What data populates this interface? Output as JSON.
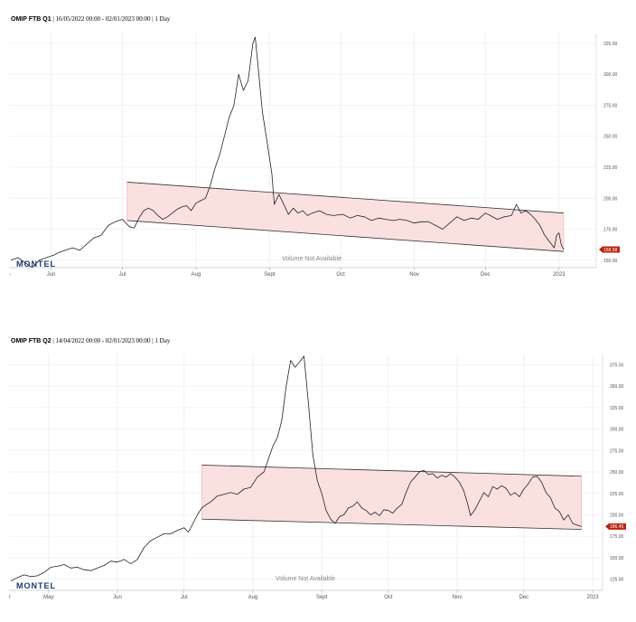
{
  "chart_data": [
    {
      "type": "line",
      "title_name": "OMIP FTB Q1",
      "title_rest": "| 16/05/2022 00:00 - 02/01/2023 00:00 | 1 Day",
      "x_labels": [
        "Jun",
        "Jul",
        "Aug",
        "Sept",
        "Oct",
        "Nov",
        "Dec",
        "2023"
      ],
      "x_label_days": [
        17,
        47,
        78,
        109,
        139,
        170,
        200,
        231
      ],
      "y_ticks": [
        "325.00",
        "300.00",
        "275.00",
        "250.00",
        "225.00",
        "200.00",
        "175.00",
        "150.00"
      ],
      "y_tick_values": [
        325,
        300,
        275,
        250,
        225,
        200,
        175,
        150
      ],
      "ylim": [
        144,
        333
      ],
      "last_value": "158.58",
      "watermark": "Volume Not Available",
      "logo": "MONTEL",
      "series": [
        {
          "values": [
            [
              0,
              150
            ],
            [
              3,
              152
            ],
            [
              6,
              148
            ],
            [
              9,
              144
            ],
            [
              12,
              150
            ],
            [
              15,
              152
            ],
            [
              18,
              154
            ],
            [
              20,
              156
            ],
            [
              23,
              158
            ],
            [
              26,
              160
            ],
            [
              29,
              158
            ],
            [
              32,
              163
            ],
            [
              35,
              168
            ],
            [
              38,
              170
            ],
            [
              41,
              178
            ],
            [
              44,
              181
            ],
            [
              47,
              183
            ],
            [
              50,
              177
            ],
            [
              52,
              176
            ],
            [
              54,
              184
            ],
            [
              56,
              190
            ],
            [
              58,
              192
            ],
            [
              60,
              190
            ],
            [
              62,
              186
            ],
            [
              64,
              183
            ],
            [
              66,
              185
            ],
            [
              68,
              188
            ],
            [
              70,
              191
            ],
            [
              72,
              193
            ],
            [
              74,
              194
            ],
            [
              76,
              190
            ],
            [
              78,
              196
            ],
            [
              80,
              198
            ],
            [
              82,
              200
            ],
            [
              84,
              210
            ],
            [
              86,
              224
            ],
            [
              88,
              235
            ],
            [
              90,
              250
            ],
            [
              92,
              265
            ],
            [
              94,
              275
            ],
            [
              96,
              300
            ],
            [
              98,
              287
            ],
            [
              100,
              295
            ],
            [
              102,
              325
            ],
            [
              103,
              330
            ],
            [
              104,
              310
            ],
            [
              106,
              270
            ],
            [
              108,
              245
            ],
            [
              110,
              220
            ],
            [
              111,
              195
            ],
            [
              113,
              203
            ],
            [
              115,
              195
            ],
            [
              117,
              187
            ],
            [
              119,
              192
            ],
            [
              121,
              188
            ],
            [
              123,
              190
            ],
            [
              125,
              186
            ],
            [
              127,
              188
            ],
            [
              130,
              190
            ],
            [
              133,
              187
            ],
            [
              136,
              186
            ],
            [
              140,
              187
            ],
            [
              143,
              184
            ],
            [
              146,
              186
            ],
            [
              149,
              185
            ],
            [
              152,
              182
            ],
            [
              155,
              184
            ],
            [
              158,
              183
            ],
            [
              161,
              182
            ],
            [
              164,
              183
            ],
            [
              167,
              182
            ],
            [
              170,
              180
            ],
            [
              173,
              181
            ],
            [
              176,
              181
            ],
            [
              179,
              178
            ],
            [
              182,
              175
            ],
            [
              185,
              180
            ],
            [
              188,
              185
            ],
            [
              191,
              182
            ],
            [
              194,
              184
            ],
            [
              197,
              183
            ],
            [
              200,
              188
            ],
            [
              202,
              186
            ],
            [
              205,
              183
            ],
            [
              208,
              185
            ],
            [
              211,
              186
            ],
            [
              213,
              195
            ],
            [
              215,
              188
            ],
            [
              217,
              190
            ],
            [
              219,
              187
            ],
            [
              221,
              183
            ],
            [
              223,
              178
            ],
            [
              225,
              170
            ],
            [
              227,
              165
            ],
            [
              229,
              160
            ],
            [
              230,
              170
            ],
            [
              231,
              172
            ],
            [
              232,
              162
            ],
            [
              233,
              158.58
            ]
          ]
        }
      ],
      "channel": {
        "upper": [
          [
            49,
            213
          ],
          [
            233,
            188
          ]
        ],
        "lower": [
          [
            49,
            182
          ],
          [
            233,
            157
          ]
        ]
      }
    },
    {
      "type": "line",
      "title_name": "OMIP FTB Q2",
      "title_rest": "| 14/04/2022 00:00 - 02/01/2023 00:00 | 1 Day",
      "x_labels": [
        "May",
        "Jun",
        "Jul",
        "Aug",
        "Sept",
        "Oct",
        "Nov",
        "Dec",
        "2023"
      ],
      "x_label_days": [
        17,
        48,
        78,
        109,
        140,
        170,
        201,
        231,
        262
      ],
      "y_ticks": [
        "375.00",
        "350.00",
        "325.00",
        "300.00",
        "275.00",
        "250.00",
        "225.00",
        "200.00",
        "175.00",
        "150.00",
        "125.00"
      ],
      "y_tick_values": [
        375,
        350,
        325,
        300,
        275,
        250,
        225,
        200,
        175,
        150,
        125
      ],
      "ylim": [
        112,
        387
      ],
      "last_value": "186.45",
      "watermark": "Volume Not Available",
      "logo": "MONTEL",
      "series": [
        {
          "values": [
            [
              0,
              123
            ],
            [
              3,
              127
            ],
            [
              6,
              130
            ],
            [
              9,
              128
            ],
            [
              12,
              129
            ],
            [
              15,
              133
            ],
            [
              18,
              139
            ],
            [
              21,
              140
            ],
            [
              24,
              142
            ],
            [
              27,
              138
            ],
            [
              30,
              139
            ],
            [
              33,
              136
            ],
            [
              36,
              135
            ],
            [
              39,
              138
            ],
            [
              42,
              141
            ],
            [
              45,
              146
            ],
            [
              48,
              145
            ],
            [
              51,
              148
            ],
            [
              54,
              143
            ],
            [
              57,
              148
            ],
            [
              60,
              162
            ],
            [
              63,
              170
            ],
            [
              66,
              174
            ],
            [
              69,
              178
            ],
            [
              72,
              178
            ],
            [
              75,
              182
            ],
            [
              78,
              185
            ],
            [
              80,
              180
            ],
            [
              82,
              190
            ],
            [
              84,
              200
            ],
            [
              86,
              208
            ],
            [
              88,
              212
            ],
            [
              90,
              215
            ],
            [
              93,
              222
            ],
            [
              96,
              224
            ],
            [
              99,
              226
            ],
            [
              102,
              224
            ],
            [
              105,
              230
            ],
            [
              108,
              232
            ],
            [
              111,
              244
            ],
            [
              114,
              250
            ],
            [
              116,
              265
            ],
            [
              118,
              280
            ],
            [
              120,
              290
            ],
            [
              122,
              310
            ],
            [
              124,
              350
            ],
            [
              126,
              380
            ],
            [
              128,
              372
            ],
            [
              130,
              378
            ],
            [
              132,
              385
            ],
            [
              134,
              330
            ],
            [
              136,
              270
            ],
            [
              138,
              240
            ],
            [
              140,
              225
            ],
            [
              142,
              205
            ],
            [
              144,
              195
            ],
            [
              146,
              190
            ],
            [
              148,
              198
            ],
            [
              150,
              200
            ],
            [
              152,
              208
            ],
            [
              154,
              210
            ],
            [
              156,
              215
            ],
            [
              158,
              208
            ],
            [
              160,
              205
            ],
            [
              162,
              200
            ],
            [
              164,
              203
            ],
            [
              166,
              199
            ],
            [
              168,
              206
            ],
            [
              170,
              205
            ],
            [
              172,
              202
            ],
            [
              174,
              208
            ],
            [
              176,
              212
            ],
            [
              178,
              226
            ],
            [
              180,
              238
            ],
            [
              182,
              244
            ],
            [
              184,
              250
            ],
            [
              186,
              252
            ],
            [
              188,
              247
            ],
            [
              190,
              248
            ],
            [
              192,
              243
            ],
            [
              194,
              246
            ],
            [
              196,
              244
            ],
            [
              198,
              248
            ],
            [
              200,
              244
            ],
            [
              202,
              238
            ],
            [
              204,
              228
            ],
            [
              206,
              210
            ],
            [
              207,
              199
            ],
            [
              209,
              206
            ],
            [
              211,
              216
            ],
            [
              213,
              226
            ],
            [
              215,
              221
            ],
            [
              217,
              233
            ],
            [
              219,
              230
            ],
            [
              221,
              234
            ],
            [
              223,
              231
            ],
            [
              225,
              223
            ],
            [
              227,
              226
            ],
            [
              229,
              221
            ],
            [
              231,
              230
            ],
            [
              233,
              236
            ],
            [
              235,
              244
            ],
            [
              237,
              245
            ],
            [
              239,
              238
            ],
            [
              241,
              226
            ],
            [
              243,
              220
            ],
            [
              245,
              208
            ],
            [
              247,
              204
            ],
            [
              249,
              194
            ],
            [
              251,
              200
            ],
            [
              253,
              190
            ],
            [
              255,
              188
            ],
            [
              257,
              186.45
            ]
          ]
        }
      ],
      "channel": {
        "upper": [
          [
            86,
            258
          ],
          [
            257,
            245
          ]
        ],
        "lower": [
          [
            86,
            195
          ],
          [
            257,
            183
          ]
        ]
      }
    }
  ]
}
